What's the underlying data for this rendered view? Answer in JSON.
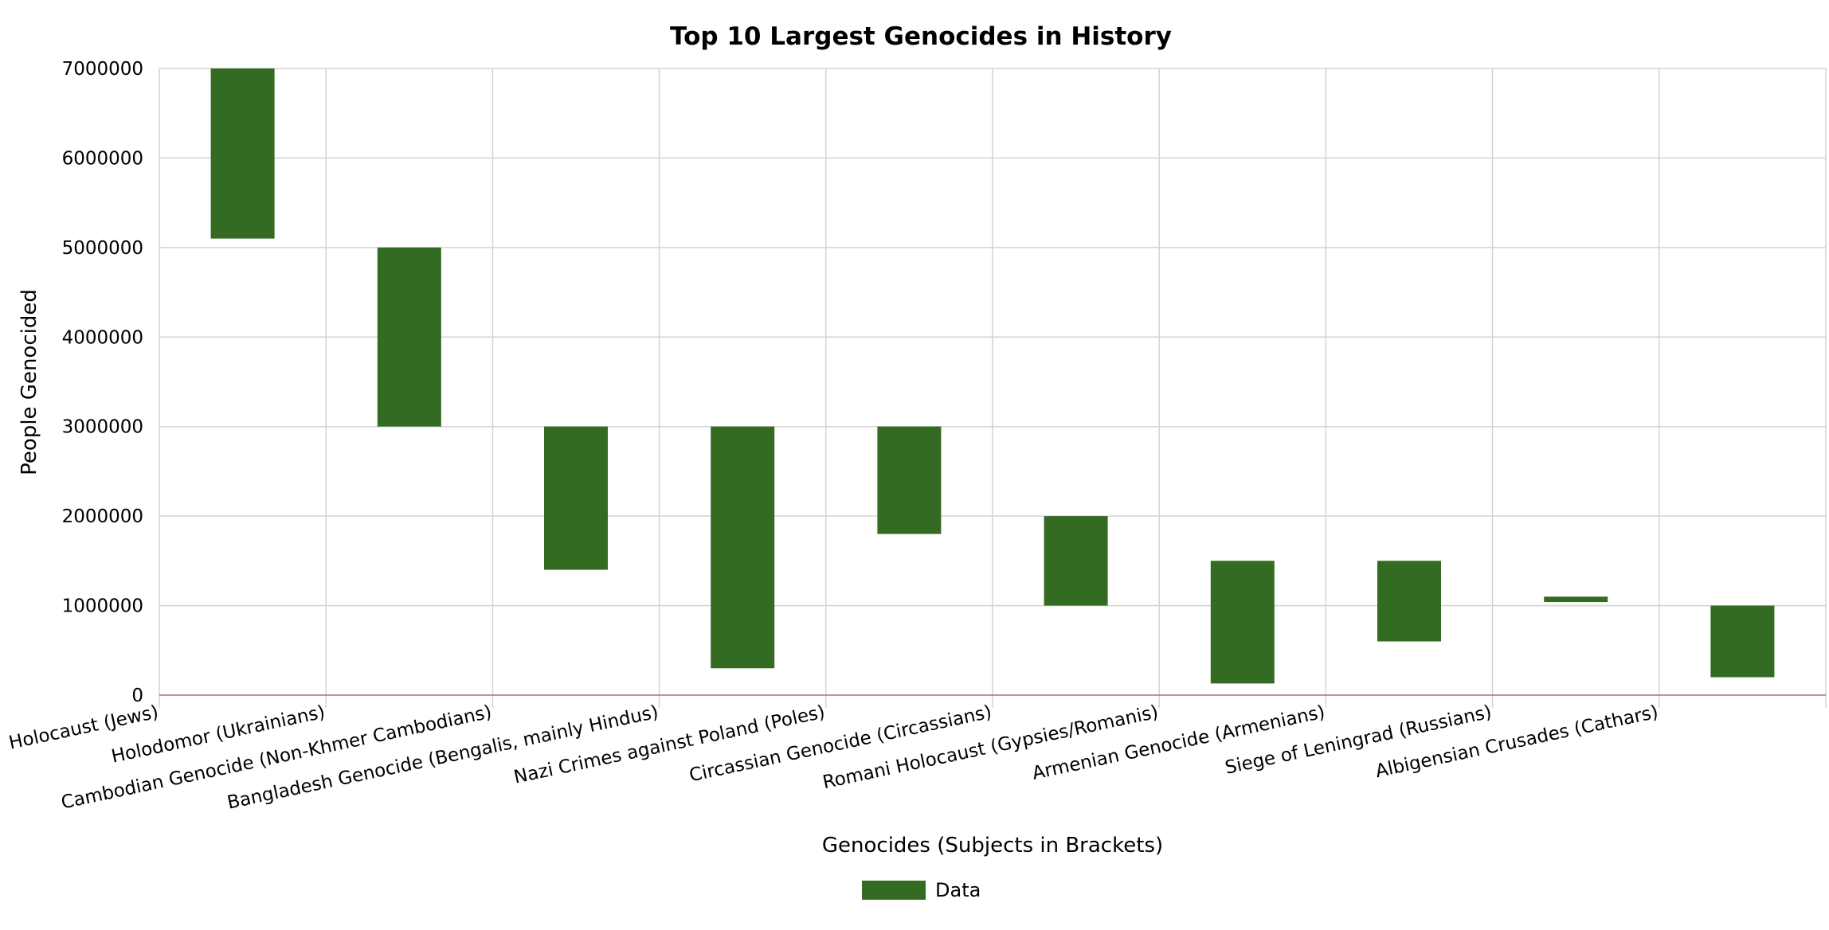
{
  "chart_data": {
    "type": "bar",
    "subtype": "floating-range",
    "title": "Top 10 Largest Genocides in History",
    "xlabel": "Genocides (Subjects in Brackets)",
    "ylabel": "People Genocided",
    "ylim": [
      0,
      7000000
    ],
    "yticks": [
      "0",
      "1000000",
      "2000000",
      "3000000",
      "4000000",
      "5000000",
      "6000000",
      "7000000"
    ],
    "grid": true,
    "legend_position": "bottom-center",
    "categories": [
      "Holocaust (Jews)",
      "Holodomor (Ukrainians)",
      "Cambodian Genocide (Non-Khmer Cambodians)",
      "Bangladesh Genocide (Bengalis, mainly Hindus)",
      "Nazi Crimes against Poland (Poles)",
      "Circassian Genocide (Circassians)",
      "Romani Holocaust (Gypsies/Romanis)",
      "Armenian Genocide (Armenians)",
      "Siege of Leningrad (Russians)",
      "Albigensian Crusades (Cathars)"
    ],
    "series": [
      {
        "name": "Data",
        "color": "#336b22",
        "ranges": [
          [
            5100000,
            7000000
          ],
          [
            3000000,
            5000000
          ],
          [
            1400000,
            3000000
          ],
          [
            300000,
            3000000
          ],
          [
            1800000,
            3000000
          ],
          [
            1000000,
            2000000
          ],
          [
            130000,
            1500000
          ],
          [
            600000,
            1500000
          ],
          [
            1040000,
            1100000
          ],
          [
            200000,
            1000000
          ]
        ]
      }
    ],
    "colors": {
      "bar": "#336b22",
      "grid": "#d3d3d3",
      "baseline": "#b07070",
      "text": "#000000"
    }
  }
}
